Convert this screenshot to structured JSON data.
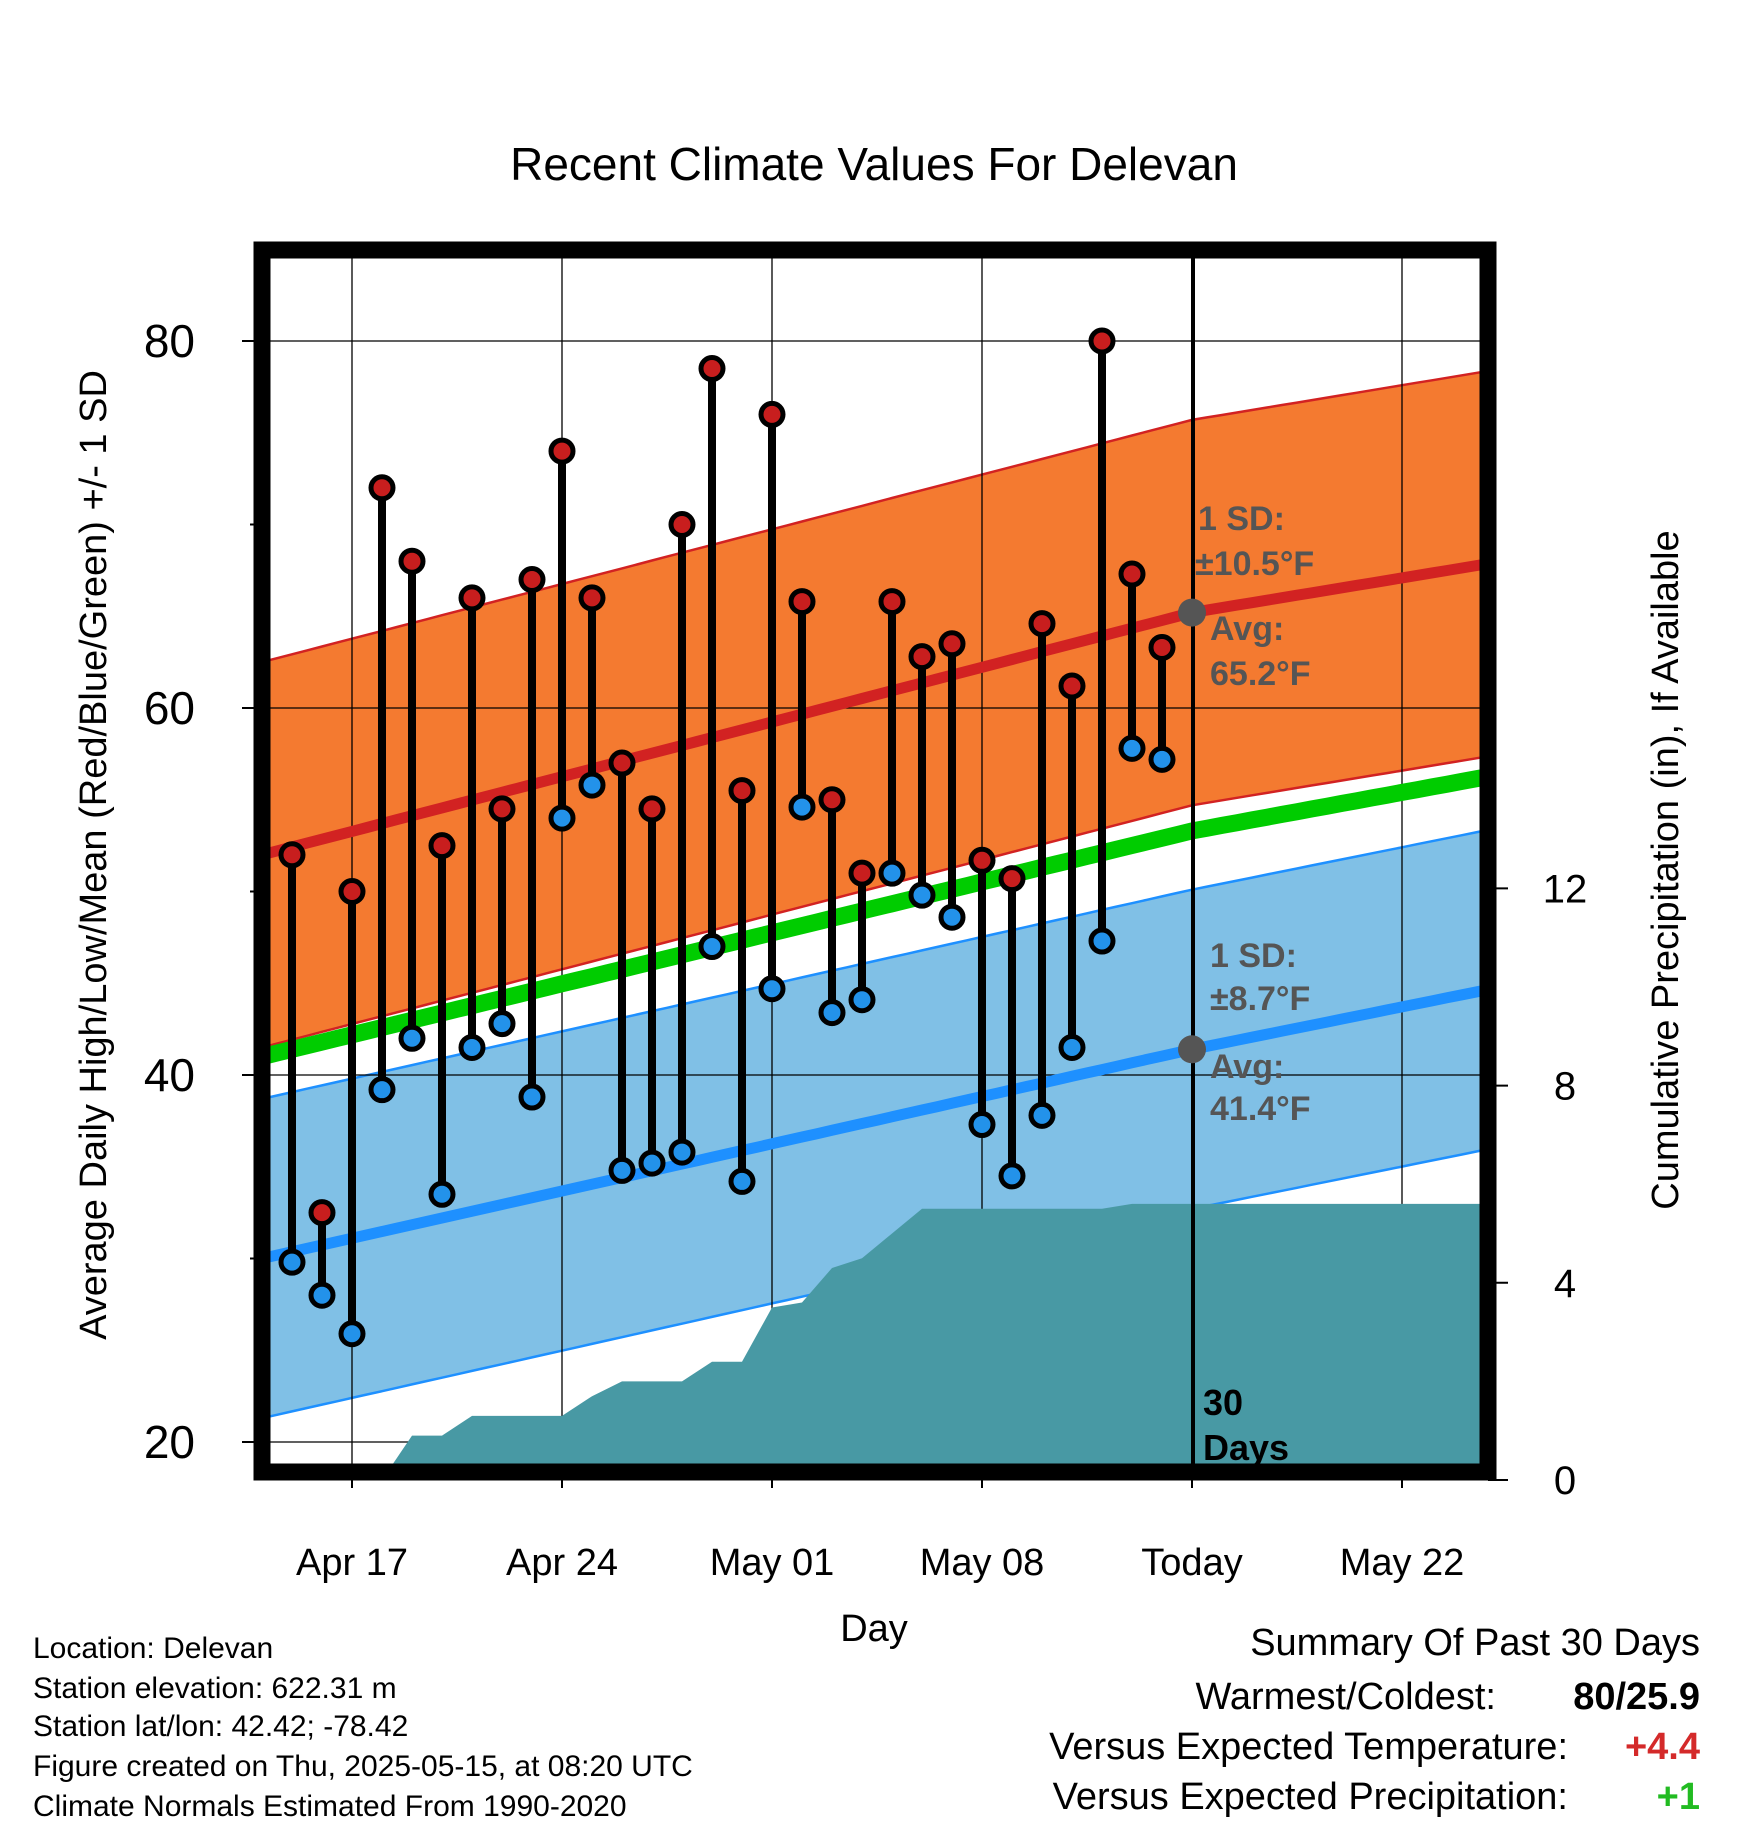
{
  "chart_data": {
    "type": "line",
    "title": "Recent Climate Values For Delevan",
    "xlabel": "Day",
    "ylabel": "Average Daily High/Low/Mean (Red/Blue/Green) +/- 1 SD",
    "y2label": "Cumulative Precipitation (in), If Available",
    "x_tick_labels": [
      "Apr 17",
      "Apr 24",
      "May 01",
      "May 08",
      "Today",
      "May 22"
    ],
    "y_ticks": [
      20,
      40,
      60,
      80
    ],
    "y2_ticks": [
      0,
      4,
      8,
      12
    ],
    "ylim": [
      18.3,
      85.4
    ],
    "y2lim": [
      0,
      22.3
    ],
    "xlim": [
      "2025-04-14",
      "2025-05-25"
    ],
    "today": "2025-05-15",
    "grid": true,
    "colors": {
      "high_band": "#f47a30",
      "high_line": "#d22222",
      "low_band": "#80c0e6",
      "low_line": "#1e90ff",
      "mean_line": "#00cc00",
      "precip_fill": "#4899a4",
      "high_marker": "#c81e1e",
      "low_marker": "#2392ea",
      "annotation_text": "#555555"
    },
    "normals": {
      "dates": [
        "2025-04-14",
        "2025-05-15",
        "2025-05-25"
      ],
      "high_mean": [
        52.0,
        65.2,
        67.9
      ],
      "high_sd": 10.5,
      "low_mean": [
        30.0,
        41.4,
        44.7
      ],
      "low_sd": 8.7,
      "mean": [
        41.0,
        53.3,
        56.3
      ]
    },
    "daily_dates": [
      "2025-04-15",
      "2025-04-16",
      "2025-04-17",
      "2025-04-18",
      "2025-04-19",
      "2025-04-20",
      "2025-04-21",
      "2025-04-22",
      "2025-04-23",
      "2025-04-24",
      "2025-04-25",
      "2025-04-26",
      "2025-04-27",
      "2025-04-28",
      "2025-04-29",
      "2025-04-30",
      "2025-05-01",
      "2025-05-02",
      "2025-05-03",
      "2025-05-04",
      "2025-05-05",
      "2025-05-06",
      "2025-05-07",
      "2025-05-08",
      "2025-05-09",
      "2025-05-10",
      "2025-05-11",
      "2025-05-12",
      "2025-05-13",
      "2025-05-14"
    ],
    "series": [
      {
        "name": "High",
        "values": [
          52.0,
          32.5,
          50.0,
          72.0,
          68.0,
          52.5,
          66.0,
          54.5,
          67.0,
          74.0,
          66.0,
          57.0,
          54.5,
          70.0,
          78.5,
          55.5,
          76.0,
          65.8,
          55.0,
          51.0,
          65.8,
          62.8,
          63.5,
          51.7,
          50.7,
          64.6,
          61.2,
          80.0,
          67.3,
          63.3
        ]
      },
      {
        "name": "Low",
        "values": [
          29.8,
          28.0,
          25.9,
          39.2,
          42.0,
          33.5,
          41.5,
          42.8,
          38.8,
          54.0,
          55.8,
          34.8,
          35.2,
          35.8,
          47.0,
          34.2,
          44.7,
          54.6,
          43.4,
          44.1,
          51.0,
          49.8,
          48.6,
          37.3,
          34.5,
          37.8,
          41.5,
          47.3,
          57.8,
          57.2
        ]
      }
    ],
    "precipitation": {
      "dates": [
        "2025-04-18",
        "2025-04-19",
        "2025-04-20",
        "2025-04-21",
        "2025-04-22",
        "2025-04-23",
        "2025-04-24",
        "2025-04-25",
        "2025-04-26",
        "2025-04-27",
        "2025-04-28",
        "2025-04-29",
        "2025-04-30",
        "2025-05-01",
        "2025-05-02",
        "2025-05-03",
        "2025-05-04",
        "2025-05-05",
        "2025-05-06",
        "2025-05-07",
        "2025-05-08",
        "2025-05-09",
        "2025-05-10",
        "2025-05-11",
        "2025-05-12",
        "2025-05-13",
        "2025-05-25"
      ],
      "values": [
        0,
        0.9,
        0.9,
        1.3,
        1.3,
        1.3,
        1.3,
        1.7,
        2.0,
        2.0,
        2.0,
        2.4,
        2.4,
        3.5,
        3.6,
        4.3,
        4.5,
        5.0,
        5.5,
        5.5,
        5.5,
        5.5,
        5.5,
        5.5,
        5.5,
        5.6,
        5.6
      ]
    },
    "annotations": {
      "high_sd_label": "1 SD:",
      "high_sd_value": "±10.5°F",
      "high_avg_label": "Avg:",
      "high_avg_value": "65.2°F",
      "low_sd_label": "1 SD:",
      "low_sd_value": "±8.7°F",
      "low_avg_label": "Avg:",
      "low_avg_value": "41.4°F",
      "days_number": "30",
      "days_word": "Days"
    }
  },
  "meta": {
    "location": "Location: Delevan",
    "elevation": "Station elevation: 622.31 m",
    "latlon": "Station lat/lon: 42.42; -78.42",
    "created": "Figure created on Thu, 2025-05-15, at 08:20 UTC",
    "normals": "Climate Normals Estimated From 1990-2020"
  },
  "summary": {
    "title": "Summary Of Past 30 Days",
    "warm_cold_label": "Warmest/Coldest:",
    "warm_cold_value": "80/25.9",
    "temp_label": "Versus Expected Temperature:",
    "temp_value": "+4.4",
    "temp_color": "#d42a2a",
    "precip_label": "Versus Expected Precipitation:",
    "precip_value": "+1",
    "precip_color": "#22bb22"
  }
}
